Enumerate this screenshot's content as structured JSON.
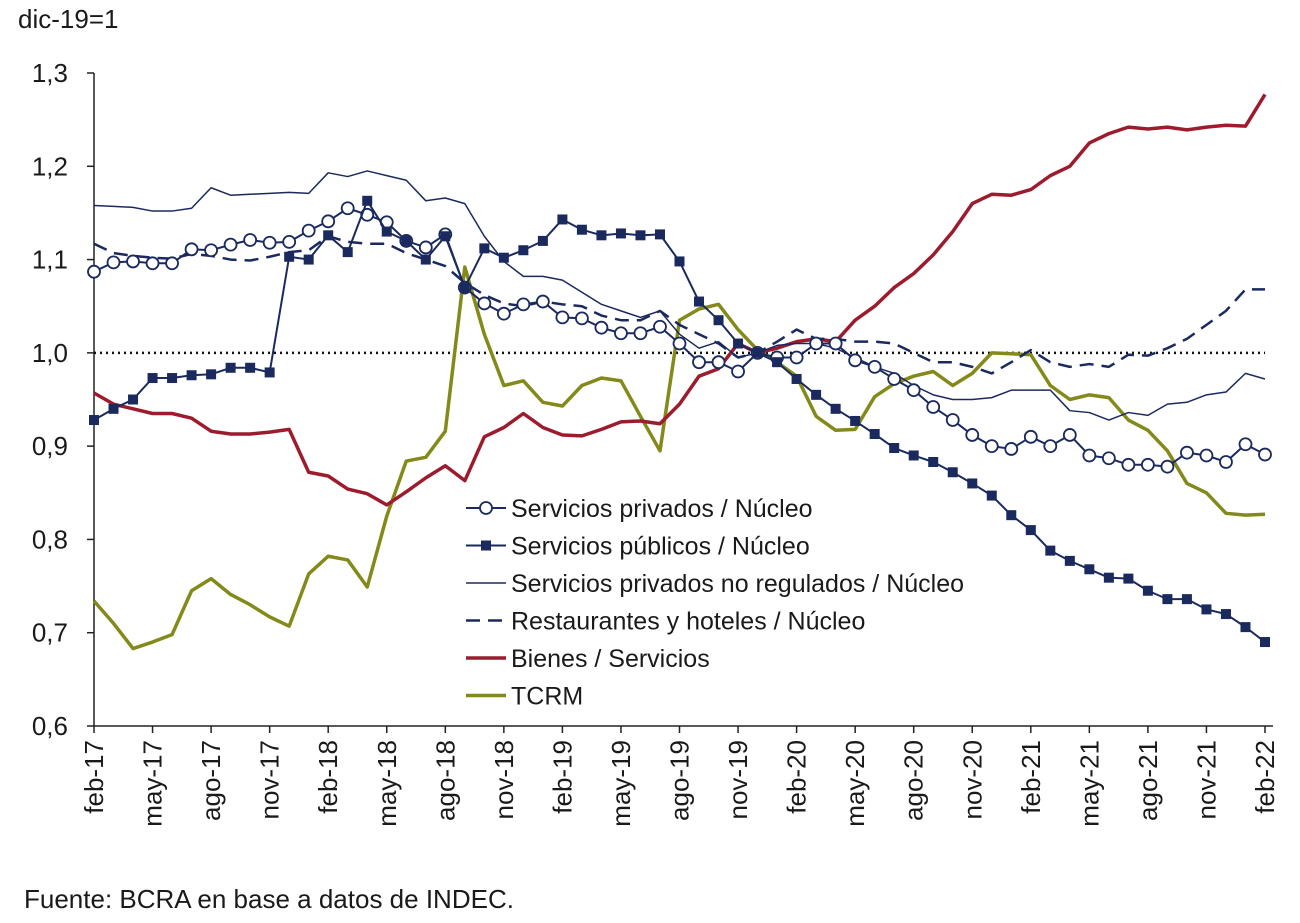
{
  "chart_data": {
    "type": "line",
    "y_label": "dic-19=1",
    "source": "Fuente: BCRA en base a datos de INDEC.",
    "categories": [
      "feb-17",
      null,
      null,
      "may-17",
      null,
      null,
      "ago-17",
      null,
      null,
      "nov-17",
      null,
      null,
      "feb-18",
      null,
      null,
      "may-18",
      null,
      null,
      "ago-18",
      null,
      null,
      "nov-18",
      null,
      null,
      "feb-19",
      null,
      null,
      "may-19",
      null,
      null,
      "ago-19",
      null,
      null,
      "nov-19",
      null,
      null,
      "feb-20",
      null,
      null,
      "may-20",
      null,
      null,
      "ago-20",
      null,
      null,
      "nov-20",
      null,
      null,
      "feb-21",
      null,
      null,
      "may-21",
      null,
      null,
      "ago-21",
      null,
      null,
      "nov-21",
      null,
      null,
      "feb-22"
    ],
    "ylim": [
      0.6,
      1.3
    ],
    "yticks": [
      {
        "value": 0.6,
        "label": "0,6"
      },
      {
        "value": 0.7,
        "label": "0,7"
      },
      {
        "value": 0.8,
        "label": "0,8"
      },
      {
        "value": 0.9,
        "label": "0,9"
      },
      {
        "value": 1.0,
        "label": "1,0"
      },
      {
        "value": 1.1,
        "label": "1,1"
      },
      {
        "value": 1.2,
        "label": "1,2"
      },
      {
        "value": 1.3,
        "label": "1,3"
      }
    ],
    "reference_line": 1.0,
    "grid": false,
    "series": [
      {
        "name": "Servicios privados / Núcleo",
        "color": "#1b2a5e",
        "marker": "circle",
        "dash": false,
        "line_width": 2,
        "values": [
          1.087,
          1.097,
          1.098,
          1.096,
          1.096,
          1.111,
          1.11,
          1.116,
          1.121,
          1.118,
          1.119,
          1.131,
          1.141,
          1.155,
          1.148,
          1.14,
          1.12,
          1.113,
          1.127,
          1.07,
          1.053,
          1.042,
          1.052,
          1.055,
          1.038,
          1.037,
          1.027,
          1.021,
          1.021,
          1.028,
          1.01,
          0.99,
          0.99,
          0.98,
          1.0,
          0.995,
          0.995,
          1.01,
          1.01,
          0.992,
          0.985,
          0.972,
          0.96,
          0.942,
          0.928,
          0.912,
          0.9,
          0.897,
          0.91,
          0.9,
          0.912,
          0.89,
          0.887,
          0.88,
          0.88,
          0.878,
          0.893,
          0.89,
          0.883,
          0.902,
          0.891
        ]
      },
      {
        "name": "Servicios públicos / Núcleo",
        "color": "#1b2a5e",
        "marker": "square",
        "dash": false,
        "line_width": 2,
        "values": [
          0.928,
          0.94,
          0.95,
          0.973,
          0.973,
          0.976,
          0.977,
          0.984,
          0.984,
          0.979,
          1.103,
          1.1,
          1.126,
          1.108,
          1.163,
          1.13,
          1.12,
          1.1,
          1.125,
          1.07,
          1.112,
          1.102,
          1.11,
          1.12,
          1.143,
          1.132,
          1.126,
          1.128,
          1.126,
          1.127,
          1.098,
          1.055,
          1.035,
          1.01,
          1.0,
          0.99,
          0.972,
          0.955,
          0.94,
          0.927,
          0.913,
          0.898,
          0.89,
          0.883,
          0.872,
          0.86,
          0.847,
          0.826,
          0.81,
          0.788,
          0.777,
          0.768,
          0.759,
          0.758,
          0.745,
          0.736,
          0.736,
          0.725,
          0.72,
          0.706,
          0.69
        ]
      },
      {
        "name": "Servicios privados no regulados / Núcleo",
        "color": "#1b2a5e",
        "marker": "none",
        "dash": false,
        "line_width": 1.5,
        "values": [
          1.158,
          1.157,
          1.156,
          1.152,
          1.152,
          1.155,
          1.177,
          1.169,
          1.17,
          1.171,
          1.172,
          1.171,
          1.193,
          1.189,
          1.195,
          1.19,
          1.185,
          1.163,
          1.166,
          1.16,
          1.125,
          1.098,
          1.082,
          1.082,
          1.078,
          1.065,
          1.052,
          1.045,
          1.038,
          1.045,
          1.02,
          1.005,
          1.012,
          0.995,
          1.0,
          1.008,
          1.01,
          1.01,
          1.005,
          0.995,
          0.985,
          0.978,
          0.965,
          0.955,
          0.95,
          0.95,
          0.952,
          0.96,
          0.96,
          0.96,
          0.938,
          0.936,
          0.928,
          0.936,
          0.933,
          0.945,
          0.947,
          0.955,
          0.958,
          0.978,
          0.972
        ]
      },
      {
        "name": "Restaurantes y hoteles / Núcleo",
        "color": "#1b2a5e",
        "marker": "none",
        "dash": true,
        "line_width": 2.5,
        "values": [
          1.117,
          1.107,
          1.104,
          1.102,
          1.101,
          1.106,
          1.104,
          1.1,
          1.099,
          1.103,
          1.108,
          1.11,
          1.125,
          1.119,
          1.117,
          1.117,
          1.107,
          1.1,
          1.093,
          1.075,
          1.062,
          1.053,
          1.05,
          1.055,
          1.052,
          1.05,
          1.04,
          1.035,
          1.035,
          1.045,
          1.03,
          1.02,
          1.01,
          0.995,
          1.0,
          1.012,
          1.025,
          1.015,
          1.015,
          1.012,
          1.012,
          1.01,
          1.0,
          0.99,
          0.99,
          0.985,
          0.978,
          0.99,
          1.003,
          0.99,
          0.985,
          0.988,
          0.985,
          0.998,
          0.997,
          1.005,
          1.015,
          1.03,
          1.045,
          1.068,
          1.068
        ]
      },
      {
        "name": "Bienes / Servicios",
        "color": "#9c1c2e",
        "marker": "none",
        "dash": false,
        "line_width": 3.5,
        "values": [
          0.957,
          0.945,
          0.94,
          0.935,
          0.935,
          0.93,
          0.916,
          0.913,
          0.913,
          0.915,
          0.918,
          0.872,
          0.868,
          0.854,
          0.849,
          0.837,
          0.851,
          0.866,
          0.879,
          0.863,
          0.91,
          0.92,
          0.935,
          0.92,
          0.912,
          0.911,
          0.918,
          0.926,
          0.927,
          0.924,
          0.945,
          0.975,
          0.983,
          1.01,
          1.0,
          1.005,
          1.012,
          1.015,
          1.012,
          1.035,
          1.05,
          1.07,
          1.085,
          1.105,
          1.13,
          1.16,
          1.17,
          1.169,
          1.175,
          1.19,
          1.2,
          1.225,
          1.235,
          1.242,
          1.24,
          1.242,
          1.239,
          1.242,
          1.244,
          1.243,
          1.277
        ]
      },
      {
        "name": "TCRM",
        "color": "#848a1a",
        "marker": "none",
        "dash": false,
        "line_width": 3.5,
        "values": [
          0.734,
          0.71,
          0.683,
          0.69,
          0.698,
          0.745,
          0.758,
          0.741,
          0.73,
          0.717,
          0.707,
          0.763,
          0.782,
          0.778,
          0.749,
          0.825,
          0.884,
          0.888,
          0.916,
          1.092,
          1.02,
          0.965,
          0.97,
          0.947,
          0.943,
          0.965,
          0.973,
          0.97,
          0.932,
          0.895,
          1.035,
          1.047,
          1.052,
          1.025,
          1.003,
          0.99,
          0.975,
          0.932,
          0.917,
          0.918,
          0.953,
          0.967,
          0.975,
          0.98,
          0.965,
          0.978,
          1.0,
          0.999,
          0.998,
          0.965,
          0.95,
          0.955,
          0.952,
          0.928,
          0.917,
          0.895,
          0.86,
          0.85,
          0.828,
          0.826,
          0.827
        ]
      }
    ]
  }
}
